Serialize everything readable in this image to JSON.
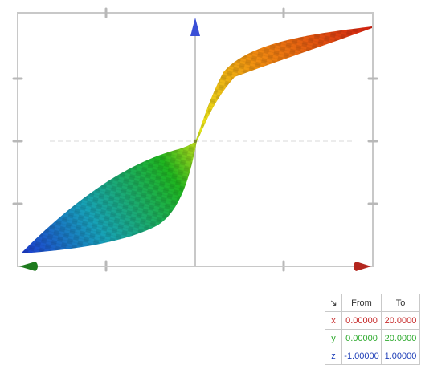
{
  "plot": {
    "frame_color": "#c8c8c8",
    "axis_colors": {
      "x": "#b3261e",
      "y": "#1e7b1e",
      "z": "#3a4fd6"
    },
    "surface_gradient": [
      "#1d3fd0",
      "#17a1b8",
      "#1fb51f",
      "#e9e61a",
      "#f08c10",
      "#d42010"
    ]
  },
  "range_table": {
    "corner_icon": "arrow-down-right-icon",
    "corner_glyph": "↘",
    "header": {
      "from": "From",
      "to": "To"
    },
    "rows": [
      {
        "axis": "x",
        "from": "0.00000",
        "to": "20.0000",
        "color": "#c62828"
      },
      {
        "axis": "y",
        "from": "0.00000",
        "to": "20.0000",
        "color": "#2eaa2e"
      },
      {
        "axis": "z",
        "from": "-1.00000",
        "to": "1.00000",
        "color": "#1f3fb8"
      }
    ]
  }
}
